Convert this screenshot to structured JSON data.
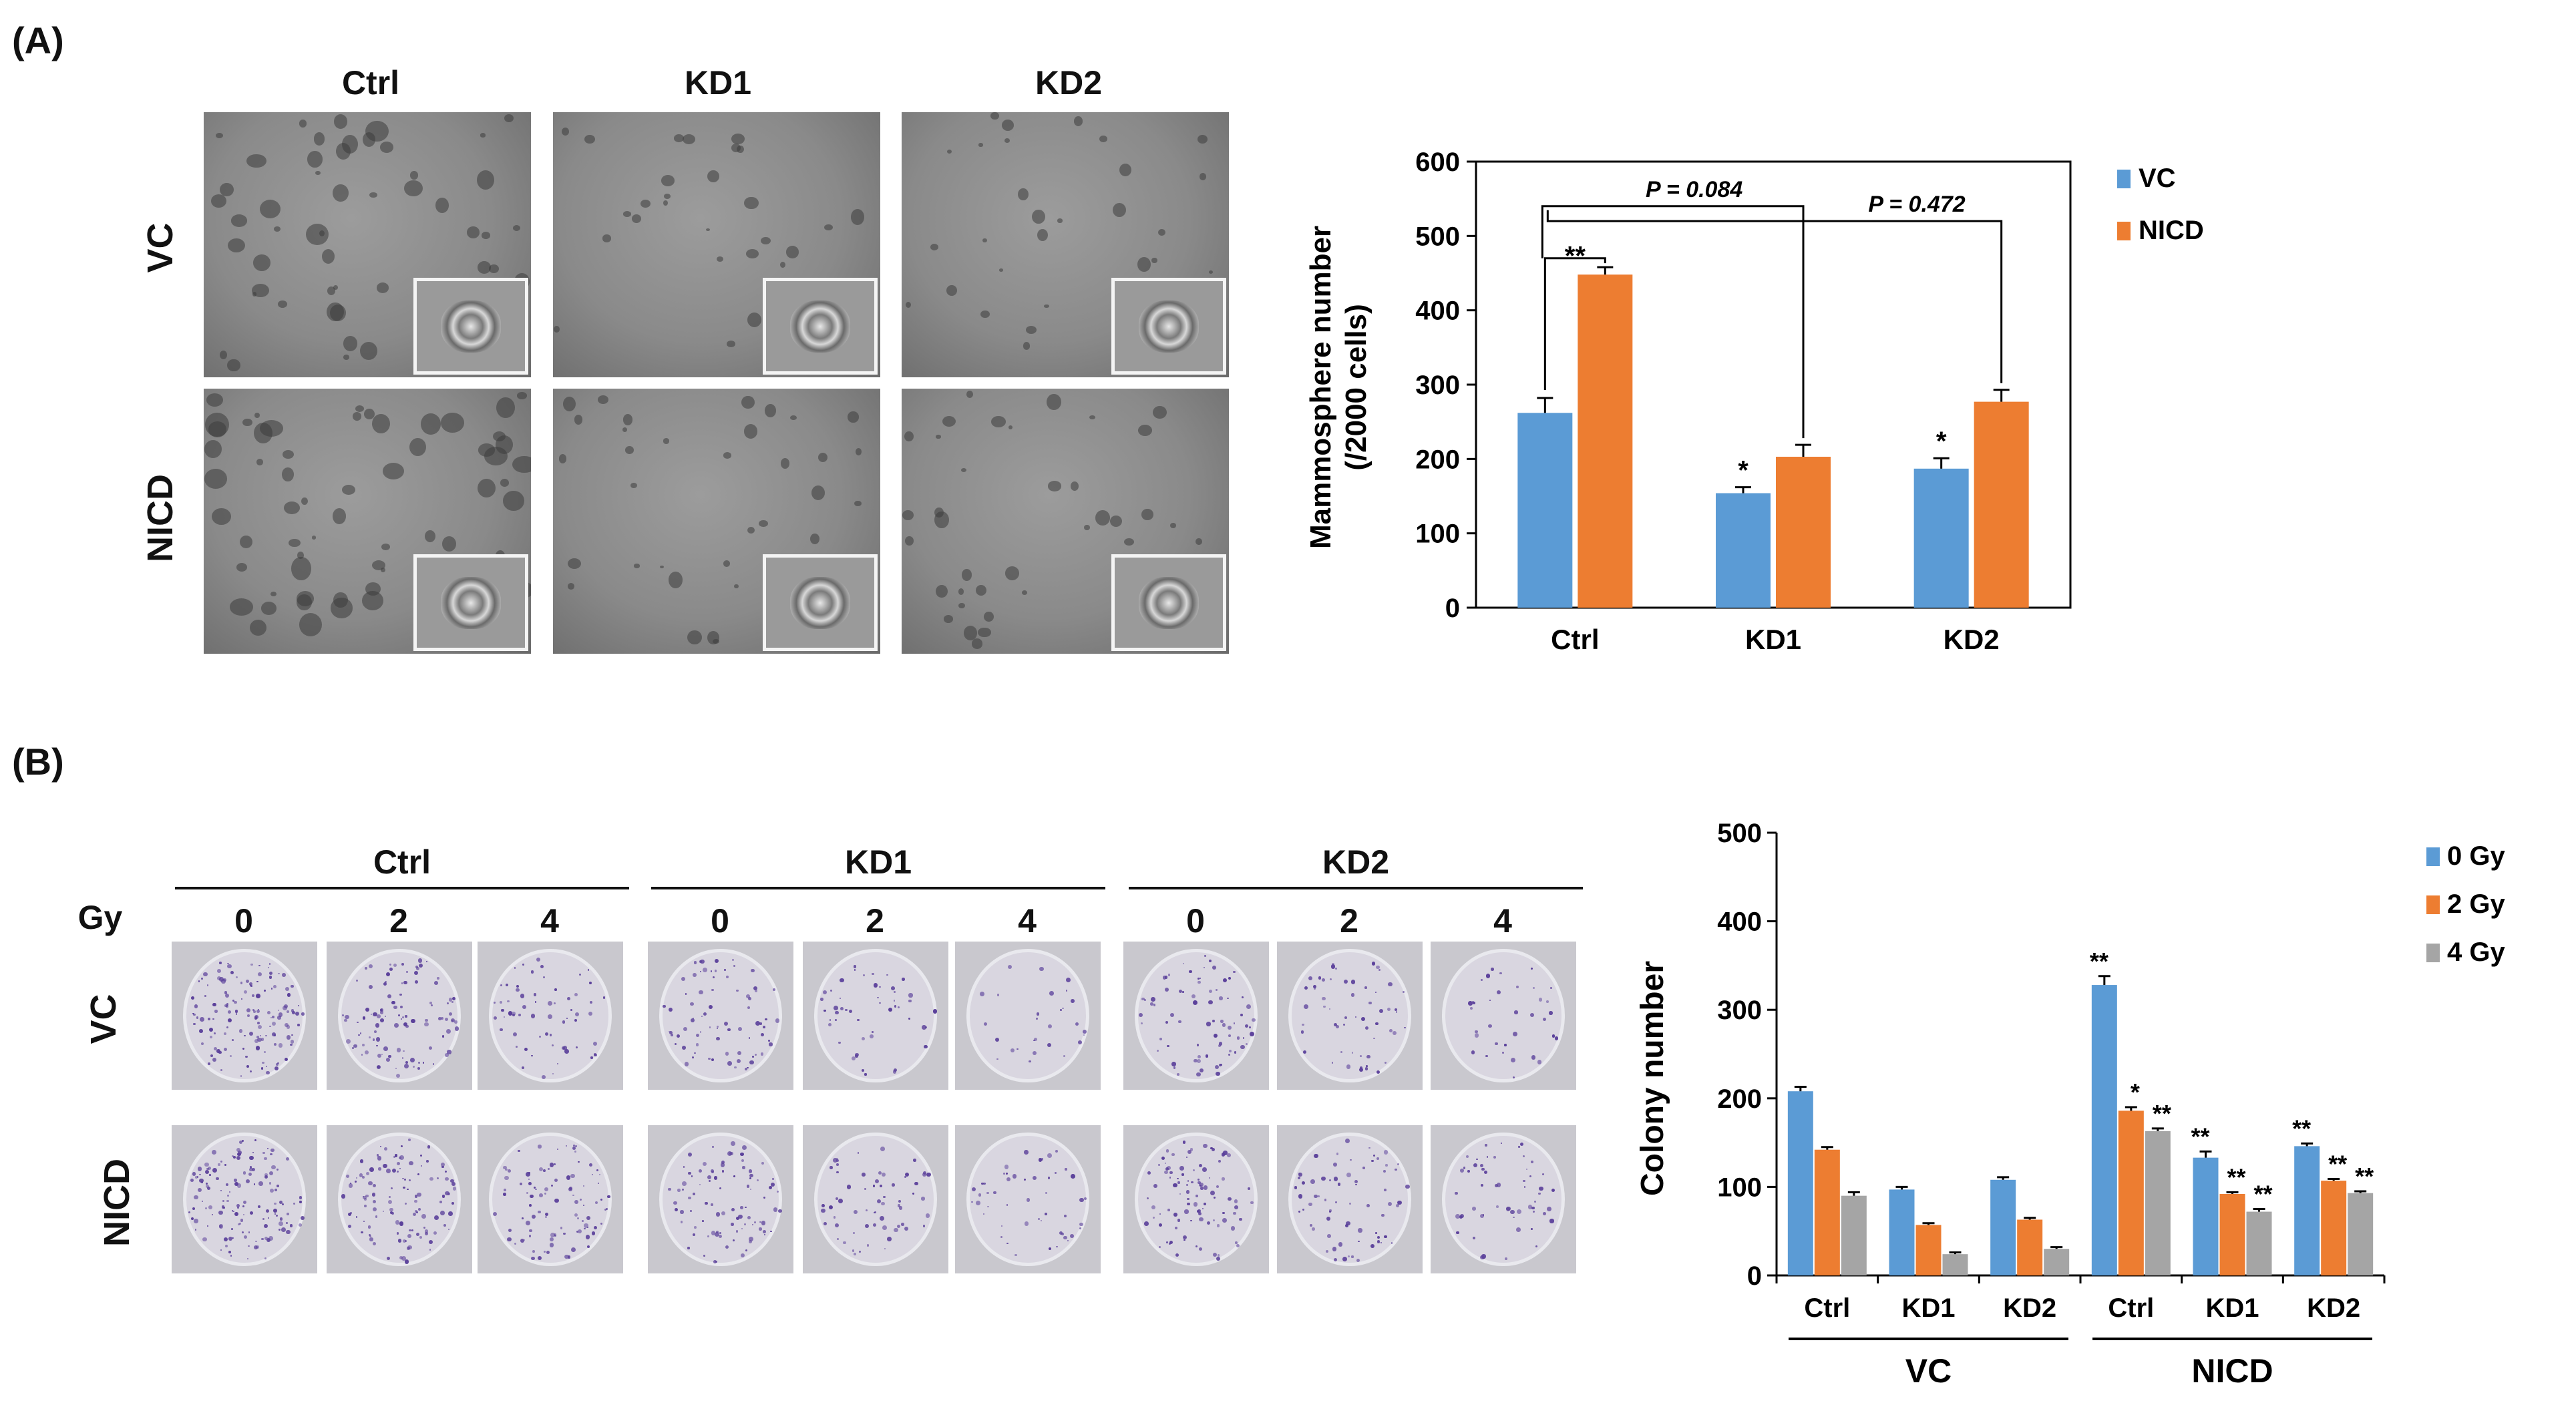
{
  "panel_a": {
    "label": "(A)",
    "col_headers": [
      "Ctrl",
      "KD1",
      "KD2"
    ],
    "row_headers": [
      "VC",
      "NICD"
    ]
  },
  "panel_b": {
    "label": "(B)",
    "group_headers": [
      "Ctrl",
      "KD1",
      "KD2"
    ],
    "gy_label": "Gy",
    "doses": [
      "0",
      "2",
      "4",
      "0",
      "2",
      "4",
      "0",
      "2",
      "4"
    ],
    "row_headers": [
      "VC",
      "NICD"
    ]
  },
  "chart_data": [
    {
      "type": "bar",
      "title": "",
      "xlabel": "",
      "ylabel": "Mammosphere number (/2000 cells)",
      "ylabel_lines": [
        "Mammosphere number",
        "(/2000 cells)"
      ],
      "categories": [
        "Ctrl",
        "KD1",
        "KD2"
      ],
      "ylim": [
        0,
        600
      ],
      "yticks": [
        0,
        100,
        200,
        300,
        400,
        500,
        600
      ],
      "legend_position": "right",
      "series": [
        {
          "name": "VC",
          "color": "#5b9bd5",
          "values": [
            262,
            154,
            187
          ],
          "errors": [
            20,
            8,
            14
          ],
          "sig": [
            "",
            "*",
            "*"
          ]
        },
        {
          "name": "NICD",
          "color": "#ed7d31",
          "values": [
            448,
            203,
            277
          ],
          "errors": [
            10,
            16,
            16
          ],
          "sig": [
            "",
            "",
            ""
          ]
        }
      ],
      "annotations": [
        {
          "text": "**",
          "between": "Ctrl VC – Ctrl NICD"
        },
        {
          "text": "P = 0.084",
          "between": "Ctrl VC – KD1 NICD"
        },
        {
          "text": "P = 0.472",
          "between": "Ctrl VC – KD2 NICD"
        }
      ]
    },
    {
      "type": "bar",
      "title": "",
      "xlabel": "",
      "ylabel": "Colony number",
      "categories": [
        "Ctrl",
        "KD1",
        "KD2",
        "Ctrl",
        "KD1",
        "KD2"
      ],
      "groups": [
        {
          "name": "VC",
          "categories": [
            "Ctrl",
            "KD1",
            "KD2"
          ]
        },
        {
          "name": "NICD",
          "categories": [
            "Ctrl",
            "KD1",
            "KD2"
          ]
        }
      ],
      "ylim": [
        0,
        500
      ],
      "yticks": [
        0,
        100,
        200,
        300,
        400,
        500
      ],
      "legend_position": "right",
      "series": [
        {
          "name": "0 Gy",
          "color": "#5b9bd5",
          "values": [
            208,
            97,
            108,
            328,
            133,
            146
          ],
          "errors": [
            5,
            3,
            3,
            10,
            7,
            3
          ],
          "sig": [
            "",
            "",
            "",
            "**",
            "**",
            "**"
          ]
        },
        {
          "name": "2 Gy",
          "color": "#ed7d31",
          "values": [
            142,
            57,
            63,
            186,
            92,
            107
          ],
          "errors": [
            3,
            2,
            2,
            4,
            2,
            2
          ],
          "sig": [
            "",
            "",
            "",
            "*",
            "**",
            "**"
          ]
        },
        {
          "name": "4 Gy",
          "color": "#a5a5a5",
          "values": [
            90,
            24,
            30,
            163,
            72,
            93
          ],
          "errors": [
            4,
            2,
            2,
            3,
            3,
            2
          ],
          "sig": [
            "",
            "",
            "",
            "**",
            "**",
            "**"
          ]
        }
      ]
    }
  ]
}
